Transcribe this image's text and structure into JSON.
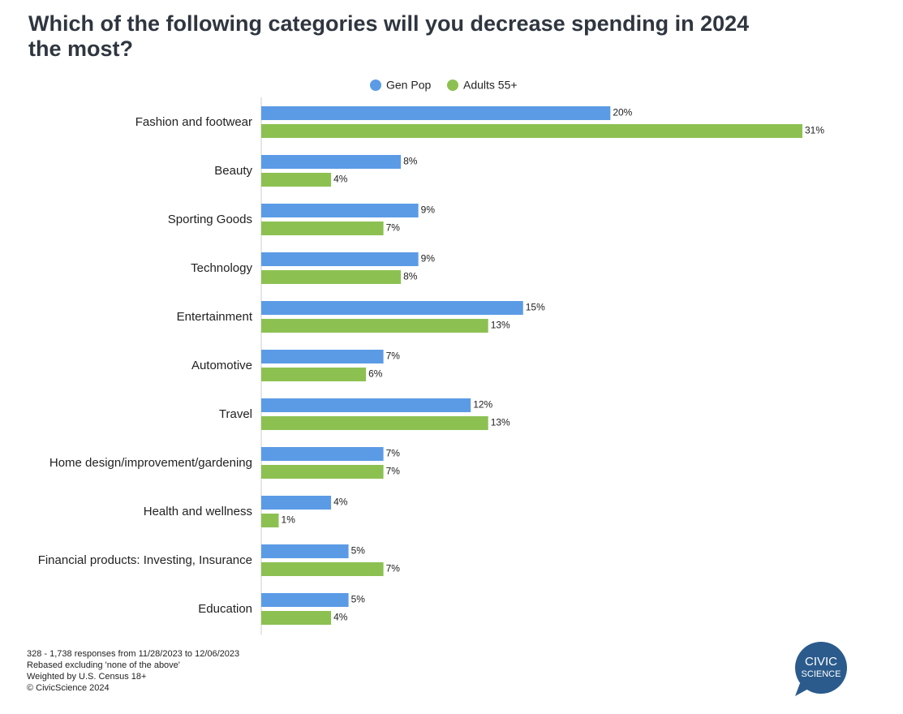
{
  "chart_data": {
    "type": "hbar",
    "title": "Which of the following categories will you decrease spending in 2024 the most?",
    "categories": [
      "Fashion and footwear",
      "Beauty",
      "Sporting Goods",
      "Technology",
      "Entertainment",
      "Automotive",
      "Travel",
      "Home design/improvement/gardening",
      "Health and wellness",
      "Financial products: Investing, Insurance",
      "Education"
    ],
    "series": [
      {
        "name": "Gen Pop",
        "color": "#5b9be6",
        "values": [
          20,
          8,
          9,
          9,
          15,
          7,
          12,
          7,
          4,
          5,
          5
        ],
        "value_labels": [
          "20%",
          "8%",
          "9%",
          "9%",
          "15%",
          "7%",
          "12%",
          "7%",
          "4%",
          "5%",
          "5%"
        ]
      },
      {
        "name": "Adults 55+",
        "color": "#8cc152",
        "values": [
          31,
          4,
          7,
          8,
          13,
          6,
          13,
          7,
          1,
          7,
          4
        ],
        "value_labels": [
          "31%",
          "4%",
          "7%",
          "8%",
          "13%",
          "6%",
          "13%",
          "7%",
          "1%",
          "7%",
          "4%"
        ]
      }
    ],
    "legend": "top",
    "notes": [
      "328 - 1,738 responses from 11/28/2023 to 12/06/2023",
      "Rebased excluding 'none of the above'",
      "Weighted by U.S. Census 18+",
      "© CivicScience 2024"
    ],
    "logo": [
      "CIVIC",
      "SCIENCE"
    ]
  }
}
